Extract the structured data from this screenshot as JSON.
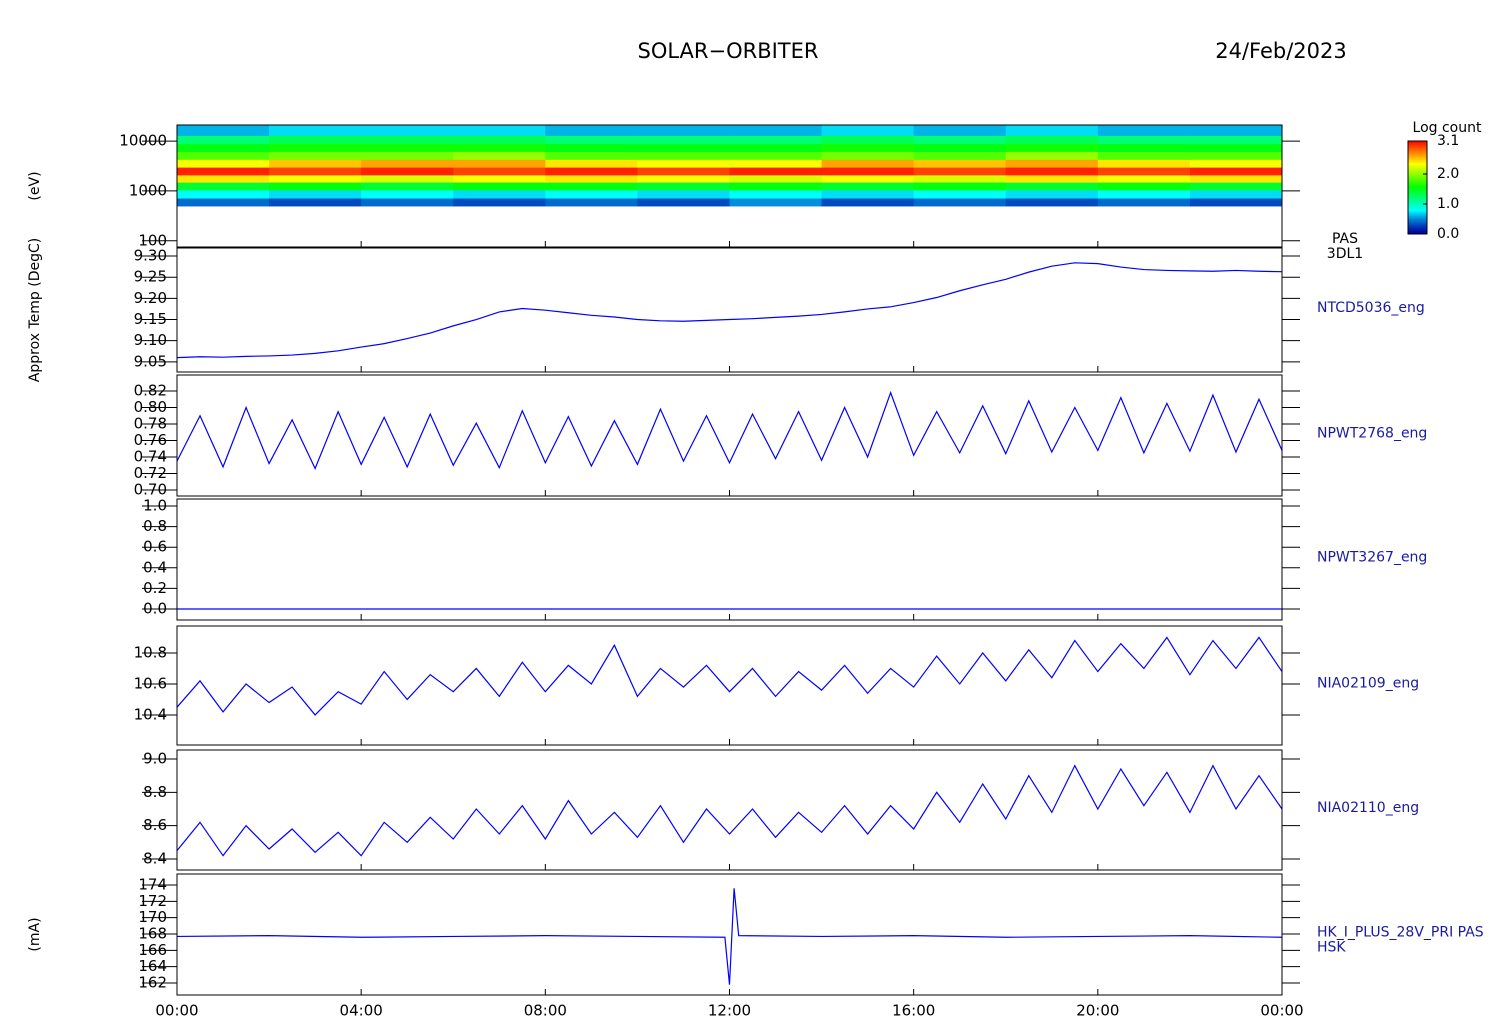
{
  "header": {
    "title": "SOLAR−ORBITER",
    "date": "24/Feb/2023"
  },
  "chart_data": [
    {
      "type": "heatmap",
      "labels": [
        "PAS",
        "3DL1"
      ],
      "ylabel": "(eV)",
      "log": true,
      "ylim": [
        75,
        21000
      ],
      "yticks": [
        100,
        1000,
        10000
      ],
      "xlim": [
        0,
        24
      ],
      "xbins": [
        0,
        2,
        4,
        6,
        8,
        10,
        12,
        14,
        16,
        18,
        20,
        22,
        24
      ],
      "ybins": [
        500,
        720,
        1050,
        1500,
        2100,
        3000,
        4300,
        6200,
        8900,
        13000,
        21000
      ],
      "colorbar_label": "Log count",
      "clim": [
        0,
        3.1
      ],
      "cticks": [
        {
          "value": 0,
          "label": "0.0"
        },
        {
          "value": 1,
          "label": "1.0"
        },
        {
          "value": 2,
          "label": "2.0"
        },
        3.1
      ],
      "z": [
        [
          0.4,
          0.3,
          0.4,
          0.3,
          0.4,
          0.3,
          0.5,
          0.3,
          0.4,
          0.3,
          0.4,
          0.3
        ],
        [
          0.8,
          0.7,
          0.8,
          0.7,
          0.8,
          0.7,
          0.8,
          0.7,
          0.8,
          0.7,
          0.8,
          0.7
        ],
        [
          1.4,
          1.5,
          1.4,
          1.5,
          1.5,
          1.4,
          1.5,
          1.4,
          1.5,
          1.4,
          1.5,
          1.4
        ],
        [
          2.4,
          2.3,
          2.2,
          2.3,
          2.4,
          2.3,
          2.2,
          2.3,
          2.2,
          2.4,
          2.3,
          2.4
        ],
        [
          3.0,
          2.9,
          3.0,
          2.9,
          3.0,
          2.9,
          3.0,
          3.0,
          2.9,
          3.0,
          2.9,
          3.0
        ],
        [
          2.3,
          2.5,
          2.6,
          2.6,
          2.4,
          2.3,
          2.3,
          2.6,
          2.5,
          2.6,
          2.4,
          2.3
        ],
        [
          1.8,
          1.9,
          1.9,
          2.0,
          1.8,
          1.8,
          1.8,
          1.9,
          1.8,
          2.0,
          1.8,
          1.8
        ],
        [
          1.5,
          1.6,
          1.6,
          1.6,
          1.5,
          1.5,
          1.5,
          1.6,
          1.5,
          1.6,
          1.5,
          1.5
        ],
        [
          1.2,
          1.3,
          1.3,
          1.3,
          1.2,
          1.2,
          1.2,
          1.3,
          1.2,
          1.3,
          1.2,
          1.2
        ],
        [
          0.6,
          0.7,
          0.7,
          0.7,
          0.6,
          0.6,
          0.6,
          0.7,
          0.6,
          0.7,
          0.6,
          0.6
        ]
      ]
    },
    {
      "type": "line",
      "labels": [
        "NTCD5036_eng"
      ],
      "ylabel": "Approx Temp (DegC)",
      "ylim": [
        9.026,
        9.319
      ],
      "xlim": [
        0,
        24
      ],
      "yticks": [
        9.05,
        {
          "value": 9.1,
          "label": "9.10"
        },
        9.15,
        {
          "value": 9.2,
          "label": "9.20"
        },
        9.25,
        {
          "value": 9.3,
          "label": "9.30"
        }
      ],
      "x": [
        0,
        0.5,
        1,
        1.5,
        2,
        2.5,
        3,
        3.5,
        4,
        4.5,
        5,
        5.5,
        6,
        6.5,
        7,
        7.5,
        8,
        8.5,
        9,
        9.5,
        10,
        10.5,
        11,
        11.5,
        12,
        12.5,
        13,
        13.5,
        14,
        14.5,
        15,
        15.5,
        16,
        16.5,
        17,
        17.5,
        18,
        18.5,
        19,
        19.5,
        20,
        20.5,
        21,
        21.5,
        22,
        22.5,
        23,
        23.5,
        24
      ],
      "series": [
        {
          "color": "#0000ff",
          "values": [
            9.06,
            9.062,
            9.061,
            9.063,
            9.064,
            9.066,
            9.07,
            9.076,
            9.085,
            9.093,
            9.105,
            9.118,
            9.135,
            9.15,
            9.168,
            9.176,
            9.172,
            9.166,
            9.16,
            9.156,
            9.15,
            9.147,
            9.146,
            9.148,
            9.15,
            9.152,
            9.155,
            9.158,
            9.162,
            9.168,
            9.175,
            9.18,
            9.19,
            9.202,
            9.218,
            9.232,
            9.245,
            9.262,
            9.276,
            9.284,
            9.282,
            9.274,
            9.268,
            9.266,
            9.265,
            9.264,
            9.266,
            9.264,
            9.263
          ]
        }
      ]
    },
    {
      "type": "line",
      "labels": [
        "NPWT2768_eng"
      ],
      "ylim": [
        0.6927,
        0.8394
      ],
      "xlim": [
        0,
        24
      ],
      "yticks": [
        {
          "value": 0.7,
          "label": "0.70"
        },
        0.72,
        0.74,
        0.76,
        0.78,
        {
          "value": 0.8,
          "label": "0.80"
        },
        0.82
      ],
      "x": [
        0,
        0.5,
        1,
        1.5,
        2,
        2.5,
        3,
        3.5,
        4,
        4.5,
        5,
        5.5,
        6,
        6.5,
        7,
        7.5,
        8,
        8.5,
        9,
        9.5,
        10,
        10.5,
        11,
        11.5,
        12,
        12.5,
        13,
        13.5,
        14,
        14.5,
        15,
        15.5,
        16,
        16.5,
        17,
        17.5,
        18,
        18.5,
        19,
        19.5,
        20,
        20.5,
        21,
        21.5,
        22,
        22.5,
        23,
        23.5,
        24
      ],
      "series": [
        {
          "color": "#0000ff",
          "values": [
            0.735,
            0.79,
            0.728,
            0.8,
            0.732,
            0.785,
            0.726,
            0.795,
            0.731,
            0.788,
            0.728,
            0.792,
            0.73,
            0.781,
            0.727,
            0.796,
            0.733,
            0.789,
            0.729,
            0.784,
            0.731,
            0.798,
            0.735,
            0.79,
            0.733,
            0.792,
            0.738,
            0.795,
            0.736,
            0.8,
            0.74,
            0.818,
            0.742,
            0.795,
            0.745,
            0.802,
            0.744,
            0.808,
            0.746,
            0.8,
            0.748,
            0.812,
            0.745,
            0.805,
            0.747,
            0.815,
            0.746,
            0.81,
            0.748
          ]
        }
      ]
    },
    {
      "type": "line",
      "labels": [
        "NPWT3267_eng"
      ],
      "ylim": [
        -0.107,
        1.068
      ],
      "xlim": [
        0,
        24
      ],
      "yticks": [
        {
          "value": 0,
          "label": "0.0"
        },
        0.2,
        0.4,
        0.6,
        0.8,
        {
          "value": 1,
          "label": "1.0"
        }
      ],
      "x": [
        0,
        24
      ],
      "series": [
        {
          "color": "#0000ff",
          "values": [
            0,
            0
          ]
        }
      ]
    },
    {
      "type": "line",
      "labels": [
        "NIA02109_eng"
      ],
      "ylim": [
        10.206,
        10.974
      ],
      "xlim": [
        0,
        24
      ],
      "yticks": [
        10.4,
        10.6,
        10.8
      ],
      "x": [
        0,
        0.5,
        1,
        1.5,
        2,
        2.5,
        3,
        3.5,
        4,
        4.5,
        5,
        5.5,
        6,
        6.5,
        7,
        7.5,
        8,
        8.5,
        9,
        9.5,
        10,
        10.5,
        11,
        11.5,
        12,
        12.5,
        13,
        13.5,
        14,
        14.5,
        15,
        15.5,
        16,
        16.5,
        17,
        17.5,
        18,
        18.5,
        19,
        19.5,
        20,
        20.5,
        21,
        21.5,
        22,
        22.5,
        23,
        23.5,
        24
      ],
      "series": [
        {
          "color": "#0000ff",
          "values": [
            10.45,
            10.62,
            10.42,
            10.6,
            10.48,
            10.58,
            10.4,
            10.55,
            10.47,
            10.68,
            10.5,
            10.66,
            10.55,
            10.7,
            10.52,
            10.74,
            10.55,
            10.72,
            10.6,
            10.85,
            10.52,
            10.7,
            10.58,
            10.72,
            10.55,
            10.7,
            10.52,
            10.68,
            10.56,
            10.72,
            10.54,
            10.7,
            10.58,
            10.78,
            10.6,
            10.8,
            10.62,
            10.82,
            10.64,
            10.88,
            10.68,
            10.86,
            10.7,
            10.9,
            10.66,
            10.88,
            10.7,
            10.9,
            10.68
          ]
        }
      ]
    },
    {
      "type": "line",
      "labels": [
        "NIA02110_eng"
      ],
      "ylim": [
        8.334,
        9.054
      ],
      "xlim": [
        0,
        24
      ],
      "yticks": [
        8.4,
        8.6,
        8.8,
        {
          "value": 9,
          "label": "9.0"
        }
      ],
      "x": [
        0,
        0.5,
        1,
        1.5,
        2,
        2.5,
        3,
        3.5,
        4,
        4.5,
        5,
        5.5,
        6,
        6.5,
        7,
        7.5,
        8,
        8.5,
        9,
        9.5,
        10,
        10.5,
        11,
        11.5,
        12,
        12.5,
        13,
        13.5,
        14,
        14.5,
        15,
        15.5,
        16,
        16.5,
        17,
        17.5,
        18,
        18.5,
        19,
        19.5,
        20,
        20.5,
        21,
        21.5,
        22,
        22.5,
        23,
        23.5,
        24
      ],
      "series": [
        {
          "color": "#0000ff",
          "values": [
            8.45,
            8.62,
            8.42,
            8.6,
            8.46,
            8.58,
            8.44,
            8.56,
            8.42,
            8.62,
            8.5,
            8.65,
            8.52,
            8.7,
            8.55,
            8.72,
            8.52,
            8.75,
            8.55,
            8.68,
            8.53,
            8.72,
            8.5,
            8.7,
            8.55,
            8.7,
            8.53,
            8.68,
            8.56,
            8.72,
            8.55,
            8.72,
            8.58,
            8.8,
            8.62,
            8.85,
            8.64,
            8.9,
            8.68,
            8.96,
            8.7,
            8.94,
            8.72,
            8.92,
            8.68,
            8.96,
            8.7,
            8.9,
            8.7
          ]
        }
      ]
    },
    {
      "type": "line",
      "labels": [
        "HK_I_PLUS_28V_PRI PAS",
        "HSK"
      ],
      "ylabel": "(mA)",
      "ylim": [
        160.53,
        175.35
      ],
      "xlim": [
        0,
        24
      ],
      "yticks": [
        162,
        164,
        166,
        168,
        170,
        172,
        174
      ],
      "xticks": [
        {
          "value": 0,
          "label": "00:00"
        },
        {
          "value": 4,
          "label": "04:00"
        },
        {
          "value": 8,
          "label": "08:00"
        },
        {
          "value": 12,
          "label": "12:00"
        },
        {
          "value": 16,
          "label": "16:00"
        },
        {
          "value": 20,
          "label": "20:00"
        },
        {
          "value": 24,
          "label": "00:00"
        }
      ],
      "x": [
        0,
        2,
        4,
        6,
        8,
        10,
        11.9,
        12.0,
        12.1,
        12.2,
        14,
        16,
        18,
        20,
        22,
        24
      ],
      "series": [
        {
          "color": "#0000ff",
          "values": [
            167.7,
            167.8,
            167.6,
            167.7,
            167.8,
            167.7,
            167.6,
            161.8,
            173.6,
            167.8,
            167.7,
            167.8,
            167.6,
            167.7,
            167.8,
            167.6
          ]
        }
      ]
    }
  ]
}
